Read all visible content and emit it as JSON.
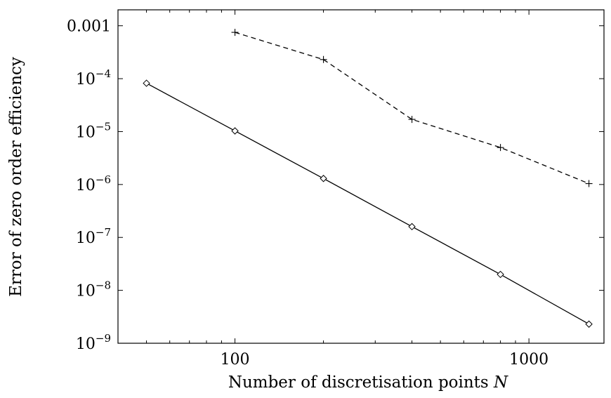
{
  "chart_data": {
    "type": "line",
    "title": "",
    "xlabel": "Number of discretisation points",
    "xlabel_var": "N",
    "ylabel": "Error of zero order efficiency",
    "xscale": "log",
    "yscale": "log",
    "xlim": [
      40,
      1800
    ],
    "ylim": [
      1e-09,
      0.002
    ],
    "grid": false,
    "legend": "none",
    "x_ticks": [
      {
        "value": 100,
        "label": "100"
      },
      {
        "value": 1000,
        "label": "1000"
      }
    ],
    "y_ticks": [
      {
        "value": 1e-09,
        "base": "10",
        "exp": "−9"
      },
      {
        "value": 1e-08,
        "base": "10",
        "exp": "−8"
      },
      {
        "value": 1e-07,
        "base": "10",
        "exp": "−7"
      },
      {
        "value": 1e-06,
        "base": "10",
        "exp": "−6"
      },
      {
        "value": 1e-05,
        "base": "10",
        "exp": "−5"
      },
      {
        "value": 0.0001,
        "base": "10",
        "exp": "−4"
      },
      {
        "value": 0.001,
        "base": "0.001",
        "exp": ""
      }
    ],
    "series": [
      {
        "line_style": "solid",
        "marker": "diamond",
        "color": "#000000",
        "x": [
          50,
          100,
          200,
          400,
          800,
          1600
        ],
        "y": [
          8.2e-05,
          1.03e-05,
          1.3e-06,
          1.6e-07,
          2e-08,
          2.3e-09
        ]
      },
      {
        "line_style": "dashed",
        "marker": "plus",
        "color": "#000000",
        "x": [
          100,
          200,
          400,
          800,
          1600
        ],
        "y": [
          0.00075,
          0.00023,
          1.7e-05,
          5e-06,
          1.04e-06
        ]
      }
    ]
  }
}
